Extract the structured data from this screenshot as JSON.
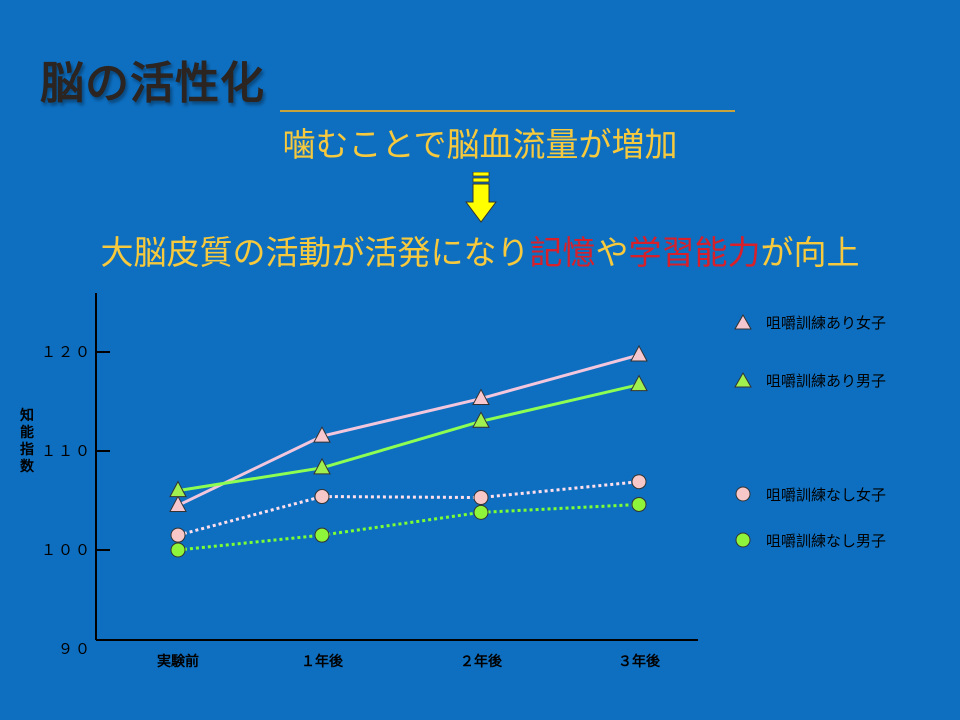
{
  "slide": {
    "title": "脳の活性化",
    "line1": "噛むことで脳血流量が増加",
    "line2_parts": [
      "大脳皮質の活動が活発になり",
      "記憶",
      "や",
      "学習能力",
      "が向上"
    ]
  },
  "colors": {
    "background": "#0e6fc1",
    "heading": "#f7c93d",
    "highlight": "#d8202a",
    "arrow": "#ffff00"
  },
  "chart_data": {
    "type": "line",
    "ylabel": "知能指数",
    "categories": [
      "実験前",
      "１年後",
      "２年後",
      "３年後"
    ],
    "ylim": [
      90,
      125
    ],
    "yticks": [
      {
        "value": 90,
        "label": "９０"
      },
      {
        "value": 100,
        "label": "１００"
      },
      {
        "value": 110,
        "label": "１１０"
      },
      {
        "value": 120,
        "label": "１２０"
      }
    ],
    "grid": false,
    "legend_position": "right",
    "series": [
      {
        "name": "咀嚼訓練あり女子",
        "values": [
          104.5,
          111.5,
          115.3,
          119.7
        ],
        "marker": "triangle",
        "color": "#f7c7cf",
        "line_color": "#f2c6dc",
        "dashed": false
      },
      {
        "name": "咀嚼訓練あり男子",
        "values": [
          106,
          108.3,
          113,
          116.7
        ],
        "marker": "triangle",
        "color": "#a0f050",
        "line_color": "#8dff52",
        "dashed": false
      },
      {
        "name": "咀嚼訓練なし女子",
        "values": [
          101.5,
          105.4,
          105.3,
          106.9
        ],
        "marker": "circle",
        "color": "#f8c8c8",
        "line_color": "#ffe0ec",
        "dashed": true
      },
      {
        "name": "咀嚼訓練なし男子",
        "values": [
          100,
          101.5,
          103.8,
          104.6
        ],
        "marker": "circle",
        "color": "#8ef53a",
        "line_color": "#7dff33",
        "dashed": true
      }
    ]
  }
}
